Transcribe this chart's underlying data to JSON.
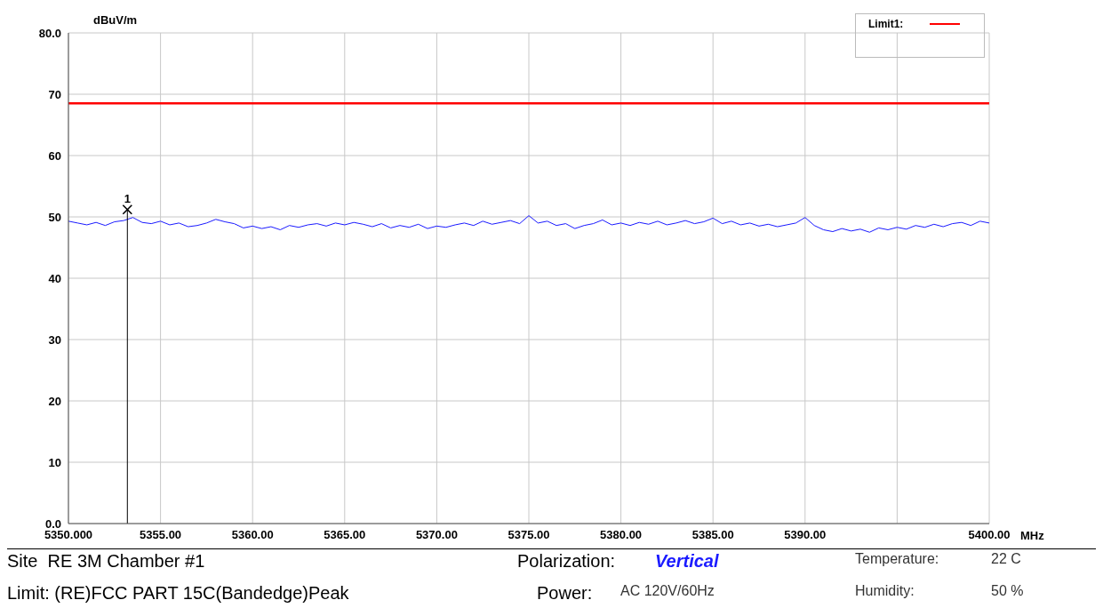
{
  "chart_data": {
    "type": "line",
    "ylabel": "dBuV/m",
    "xlabel": "MHz",
    "xlim": [
      5350,
      5400
    ],
    "xticks": [
      {
        "value": 5350,
        "label": "5350.000"
      },
      {
        "value": 5355,
        "label": "5355.00"
      },
      {
        "value": 5360,
        "label": "5360.00"
      },
      {
        "value": 5365,
        "label": "5365.00"
      },
      {
        "value": 5370,
        "label": "5370.00"
      },
      {
        "value": 5375,
        "label": "5375.00"
      },
      {
        "value": 5380,
        "label": "5380.00"
      },
      {
        "value": 5385,
        "label": "5385.00"
      },
      {
        "value": 5390,
        "label": "5390.00"
      },
      {
        "value": 5395,
        "label": null
      },
      {
        "value": 5400,
        "label": "5400.00"
      }
    ],
    "ylim": [
      0,
      80
    ],
    "yticks": [
      {
        "value": 0,
        "label": "0.0"
      },
      10,
      20,
      30,
      40,
      50,
      60,
      70,
      {
        "value": 80,
        "label": "80.0"
      }
    ],
    "grid": true,
    "legend": "top right",
    "marker": "none",
    "line_style": "solid",
    "series": [
      {
        "color": "#1a1aff",
        "x": [
          5350,
          5350.5,
          5351,
          5351.5,
          5352,
          5352.5,
          5353,
          5353.5,
          5354,
          5354.5,
          5355,
          5355.5,
          5356,
          5356.5,
          5357,
          5357.5,
          5358,
          5358.5,
          5359,
          5359.5,
          5360,
          5360.5,
          5361,
          5361.5,
          5362,
          5362.5,
          5363,
          5363.5,
          5364,
          5364.5,
          5365,
          5365.5,
          5366,
          5366.5,
          5367,
          5367.5,
          5368,
          5368.5,
          5369,
          5369.5,
          5370,
          5370.5,
          5371,
          5371.5,
          5372,
          5372.5,
          5373,
          5373.5,
          5374,
          5374.5,
          5375,
          5375.5,
          5376,
          5376.5,
          5377,
          5377.5,
          5378,
          5378.5,
          5379,
          5379.5,
          5380,
          5380.5,
          5381,
          5381.5,
          5382,
          5382.5,
          5383,
          5383.5,
          5384,
          5384.5,
          5385,
          5385.5,
          5386,
          5386.5,
          5387,
          5387.5,
          5388,
          5388.5,
          5389,
          5389.5,
          5390,
          5390.5,
          5391,
          5391.5,
          5392,
          5392.5,
          5393,
          5393.5,
          5394,
          5394.5,
          5395,
          5395.5,
          5396,
          5396.5,
          5397,
          5397.5,
          5398,
          5398.5,
          5399,
          5399.5,
          5400
        ],
        "values": [
          49.3,
          49.0,
          48.7,
          49.1,
          48.6,
          49.2,
          49.4,
          49.9,
          49.1,
          48.9,
          49.3,
          48.7,
          49.0,
          48.4,
          48.6,
          49.0,
          49.6,
          49.2,
          48.9,
          48.2,
          48.5,
          48.1,
          48.4,
          47.9,
          48.6,
          48.3,
          48.7,
          48.9,
          48.5,
          49.0,
          48.7,
          49.1,
          48.8,
          48.4,
          48.9,
          48.2,
          48.6,
          48.3,
          48.8,
          48.1,
          48.5,
          48.3,
          48.7,
          49.0,
          48.6,
          49.3,
          48.8,
          49.1,
          49.4,
          48.9,
          50.2,
          49.0,
          49.3,
          48.6,
          48.9,
          48.1,
          48.6,
          48.9,
          49.5,
          48.7,
          49.0,
          48.6,
          49.1,
          48.8,
          49.3,
          48.7,
          49.0,
          49.4,
          48.9,
          49.2,
          49.8,
          48.9,
          49.3,
          48.7,
          49.0,
          48.5,
          48.8,
          48.4,
          48.7,
          49.0,
          49.9,
          48.6,
          47.9,
          47.6,
          48.1,
          47.7,
          48.0,
          47.5,
          48.2,
          47.9,
          48.3,
          48.0,
          48.6,
          48.3,
          48.8,
          48.4,
          48.9,
          49.1,
          48.6,
          49.3,
          49.0
        ]
      },
      {
        "name": "Limit1:",
        "color": "#ff0000",
        "x": [
          5350,
          5400
        ],
        "values": [
          68.5,
          68.5
        ]
      }
    ],
    "ref_lines": [
      {
        "axis": "x",
        "value": 5353.2,
        "color": "#000000"
      }
    ],
    "annotations": [
      {
        "text": "1",
        "x": 5353.2,
        "y": 51.2
      },
      "Site  RE 3M Chamber #1",
      "Polarization:",
      "Vertical",
      "Temperature:",
      "22 C",
      "Limit: (RE)FCC PART 15C(Bandedge)Peak",
      "Power:",
      "AC 120V/60Hz",
      "Humidity:",
      "50 %"
    ]
  }
}
